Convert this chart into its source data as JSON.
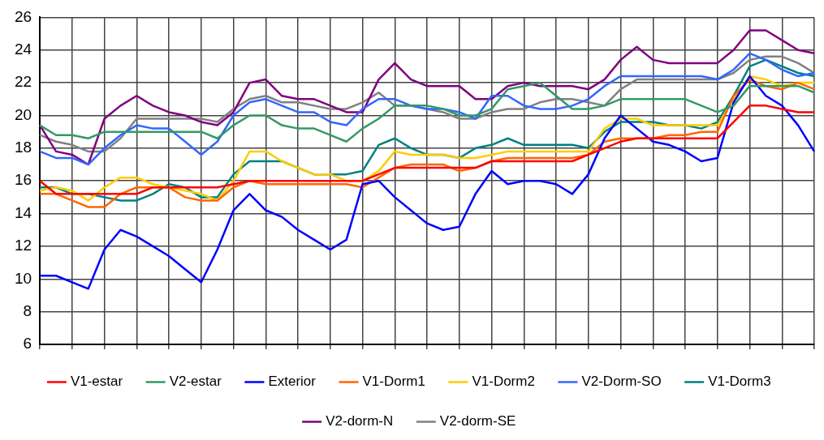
{
  "chart_data": {
    "type": "line",
    "categories": [
      null,
      null,
      null,
      null,
      null,
      null,
      null,
      null,
      null,
      null,
      null,
      null,
      null,
      null,
      null,
      null,
      null,
      null,
      null,
      null,
      null,
      null,
      null,
      null,
      null,
      null,
      null,
      null,
      null,
      null,
      null,
      null,
      null,
      null,
      null,
      null,
      null,
      null,
      null,
      null,
      null,
      null,
      null,
      null,
      null,
      null,
      null,
      null,
      null
    ],
    "ylim": [
      6,
      26
    ],
    "yticks": [
      6,
      8,
      10,
      12,
      14,
      16,
      18,
      20,
      22,
      24,
      26
    ],
    "grid": true,
    "legend": "bottom",
    "tick_labels": "y",
    "series": [
      {
        "name": "V1-estar",
        "color": "#ff0000",
        "values": [
          16,
          15.2,
          15.2,
          15.2,
          15.2,
          15.2,
          15.2,
          15.6,
          15.6,
          15.6,
          15.6,
          15.6,
          15.8,
          16,
          16,
          16,
          16,
          16,
          16,
          16,
          16,
          16.4,
          16.8,
          16.8,
          16.8,
          16.8,
          16.8,
          16.8,
          17.2,
          17.2,
          17.2,
          17.2,
          17.2,
          17.2,
          17.6,
          18,
          18.4,
          18.6,
          18.6,
          18.6,
          18.6,
          18.6,
          18.6,
          19.6,
          20.6,
          20.6,
          20.4,
          20.2,
          20.2
        ]
      },
      {
        "name": "V2-estar",
        "color": "#339966",
        "values": [
          19.4,
          18.8,
          18.8,
          18.6,
          19,
          19,
          19,
          19,
          19,
          19,
          19,
          18.6,
          19.4,
          20,
          20,
          19.4,
          19.2,
          19.2,
          18.8,
          18.4,
          19.2,
          19.8,
          20.6,
          20.6,
          20.6,
          20.4,
          20,
          20,
          20.4,
          21.6,
          21.8,
          22,
          21.2,
          20.4,
          20.4,
          20.6,
          21,
          21,
          21,
          21,
          21,
          20.6,
          20.2,
          20.6,
          21.8,
          21.8,
          21.8,
          21.8,
          21.4
        ]
      },
      {
        "name": "Exterior",
        "color": "#0000ff",
        "values": [
          10.2,
          10.2,
          9.8,
          9.4,
          11.8,
          13,
          12.6,
          12,
          11.4,
          10.6,
          9.8,
          11.8,
          14.2,
          15.2,
          14.2,
          13.8,
          13,
          12.4,
          11.8,
          12.4,
          15.8,
          16,
          15,
          14.2,
          13.4,
          13,
          13.2,
          15.2,
          16.6,
          15.8,
          16,
          16,
          15.8,
          15.2,
          16.4,
          18.6,
          20,
          19.2,
          18.4,
          18.2,
          17.8,
          17.2,
          17.4,
          20.8,
          22.4,
          21.2,
          20.6,
          19.4,
          17.8
        ]
      },
      {
        "name": "V1-Dorm1",
        "color": "#ff6600",
        "values": [
          15.2,
          15.2,
          14.8,
          14.4,
          14.4,
          15.2,
          15.6,
          15.6,
          15.6,
          15,
          14.8,
          14.8,
          15.6,
          16,
          15.8,
          15.8,
          15.8,
          15.8,
          15.8,
          15.8,
          15.6,
          16.2,
          16.8,
          17,
          17,
          17,
          16.6,
          16.8,
          17.2,
          17.4,
          17.4,
          17.4,
          17.4,
          17.4,
          17.6,
          18.4,
          18.6,
          18.6,
          18.6,
          18.8,
          18.8,
          19,
          19,
          21.2,
          22.2,
          21.8,
          21.6,
          22,
          21.6
        ]
      },
      {
        "name": "V1-Dorm2",
        "color": "#ffcc00",
        "values": [
          15.4,
          15.6,
          15.4,
          14.8,
          15.6,
          16.2,
          16.2,
          15.8,
          15.6,
          15.4,
          15.2,
          14.8,
          16,
          17.8,
          17.8,
          17.2,
          16.8,
          16.4,
          16.4,
          16,
          16,
          16.6,
          17.8,
          17.6,
          17.6,
          17.6,
          17.4,
          17.4,
          17.6,
          17.8,
          17.8,
          17.8,
          17.8,
          17.8,
          17.8,
          19.2,
          19.8,
          19.8,
          19.4,
          19.4,
          19.4,
          19.4,
          19.4,
          21,
          22.4,
          22.2,
          21.8,
          22,
          22
        ]
      },
      {
        "name": "V2-Dorm-SO",
        "color": "#3366ff",
        "values": [
          17.8,
          17.4,
          17.4,
          17,
          18,
          18.8,
          19.4,
          19.2,
          19.2,
          18.4,
          17.6,
          18.4,
          20,
          20.8,
          21,
          20.6,
          20.2,
          20.2,
          19.6,
          19.4,
          20.4,
          21,
          21,
          20.6,
          20.4,
          20.4,
          20.2,
          19.8,
          21.2,
          21.2,
          20.6,
          20.4,
          20.4,
          20.6,
          21,
          21.8,
          22.4,
          22.4,
          22.4,
          22.4,
          22.4,
          22.4,
          22.2,
          22.8,
          23.8,
          23.4,
          22.8,
          22.4,
          22.6
        ]
      },
      {
        "name": "V1-Dorm3",
        "color": "#008080",
        "values": [
          15.6,
          15.6,
          15.2,
          15.2,
          15,
          14.8,
          14.8,
          15.2,
          15.8,
          15.6,
          15,
          15,
          16.4,
          17.2,
          17.2,
          17.2,
          16.8,
          16.4,
          16.4,
          16.4,
          16.6,
          18.2,
          18.6,
          18,
          17.6,
          17.6,
          17.4,
          18,
          18.2,
          18.6,
          18.2,
          18.2,
          18.2,
          18.2,
          18,
          19,
          19.6,
          19.6,
          19.6,
          19.4,
          19.4,
          19.2,
          19.6,
          21.2,
          23,
          23.4,
          23,
          22.6,
          22.4
        ]
      },
      {
        "name": "V2-dorm-N",
        "color": "#800080",
        "values": [
          19.4,
          17.8,
          17.6,
          17,
          19.8,
          20.6,
          21.2,
          20.6,
          20.2,
          20,
          19.6,
          19.4,
          20.2,
          22,
          22.2,
          21.2,
          21,
          21,
          20.6,
          20.2,
          20.2,
          22.2,
          23.2,
          22.2,
          21.8,
          21.8,
          21.8,
          21,
          21,
          21.8,
          22,
          21.8,
          21.8,
          21.8,
          21.6,
          22.2,
          23.4,
          24.2,
          23.4,
          23.2,
          23.2,
          23.2,
          23.2,
          24,
          25.2,
          25.2,
          24.6,
          24,
          23.8
        ]
      },
      {
        "name": "V2-dorm-SE",
        "color": "#808080",
        "values": [
          18.8,
          18.4,
          18.2,
          17.8,
          17.8,
          18.6,
          19.8,
          19.8,
          19.8,
          19.8,
          19.8,
          19.6,
          20.4,
          21,
          21.2,
          20.8,
          20.8,
          20.6,
          20.4,
          20.4,
          20.8,
          21.4,
          20.6,
          20.6,
          20.4,
          20.2,
          19.8,
          19.8,
          20.2,
          20.4,
          20.4,
          20.8,
          21,
          21,
          20.8,
          20.6,
          21.6,
          22.2,
          22.2,
          22.2,
          22.2,
          22.2,
          22.2,
          22.6,
          23.4,
          23.6,
          23.6,
          23.2,
          22.6
        ]
      }
    ]
  }
}
